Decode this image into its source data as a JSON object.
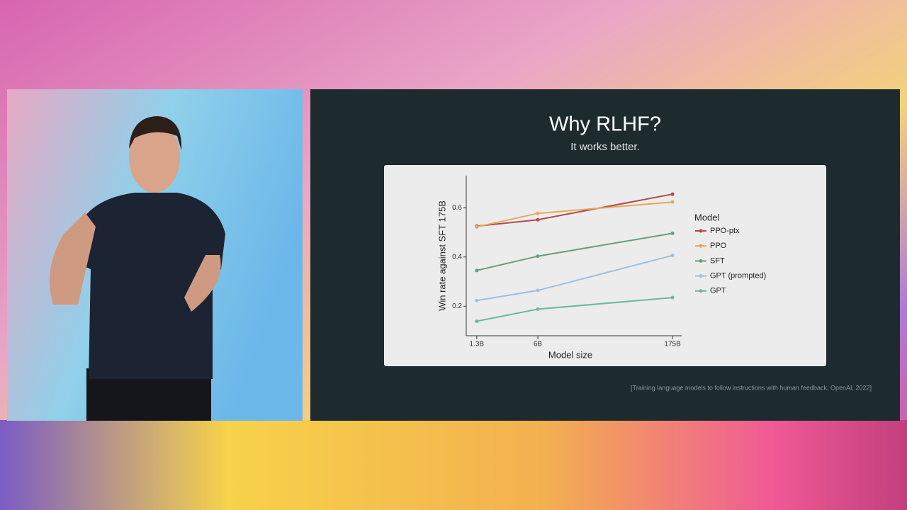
{
  "slide": {
    "title": "Why RLHF?",
    "subtitle": "It works better.",
    "citation": "[Training language models to follow instructions with human feedback, OpenAI, 2022]"
  },
  "chart_data": {
    "type": "line",
    "x_label": "Model size",
    "y_label": "Win rate against SFT 175B",
    "x": [
      1.3,
      6,
      175
    ],
    "xscale": "log",
    "xlim": [
      1,
      220
    ],
    "xticks": [
      {
        "value": 1.3,
        "label": "1.3B"
      },
      {
        "value": 6,
        "label": "6B"
      },
      {
        "value": 175,
        "label": "175B"
      }
    ],
    "ylim": [
      0.08,
      0.73
    ],
    "yticks": [
      0.2,
      0.4,
      0.6
    ],
    "legend_title": "Model",
    "legend": "right",
    "series": [
      {
        "name": "PPO-ptx",
        "color": "#b5484b",
        "values": [
          0.525,
          0.551,
          0.655
        ]
      },
      {
        "name": "PPO",
        "color": "#e3a95c",
        "values": [
          0.522,
          0.577,
          0.623
        ]
      },
      {
        "name": "SFT",
        "color": "#6a9f78",
        "values": [
          0.345,
          0.403,
          0.496
        ]
      },
      {
        "name": "GPT (prompted)",
        "color": "#9dc0e2",
        "values": [
          0.223,
          0.264,
          0.406
        ]
      },
      {
        "name": "GPT",
        "color": "#6bb99a",
        "values": [
          0.139,
          0.188,
          0.235
        ]
      }
    ]
  }
}
